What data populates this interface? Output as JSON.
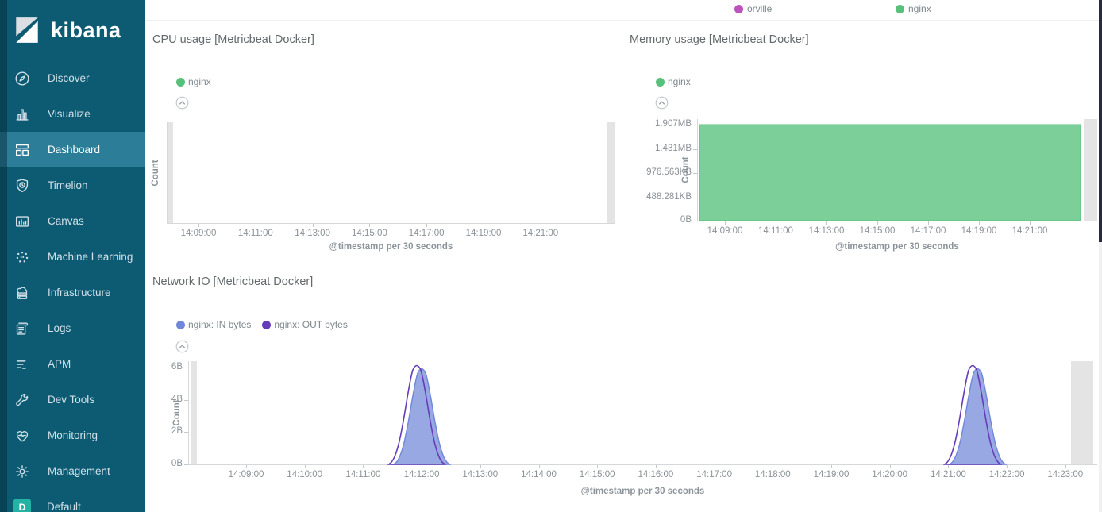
{
  "sidebar": {
    "logo_text": "kibana",
    "items": [
      {
        "label": "Discover",
        "icon": "compass-icon",
        "selected": false
      },
      {
        "label": "Visualize",
        "icon": "bar-chart-icon",
        "selected": false
      },
      {
        "label": "Dashboard",
        "icon": "dashboard-grid-icon",
        "selected": true
      },
      {
        "label": "Timelion",
        "icon": "timelion-shield-icon",
        "selected": false
      },
      {
        "label": "Canvas",
        "icon": "canvas-icon",
        "selected": false
      },
      {
        "label": "Machine Learning",
        "icon": "machine-learning-icon",
        "selected": false
      },
      {
        "label": "Infrastructure",
        "icon": "infrastructure-icon",
        "selected": false
      },
      {
        "label": "Logs",
        "icon": "logs-icon",
        "selected": false
      },
      {
        "label": "APM",
        "icon": "apm-icon",
        "selected": false
      },
      {
        "label": "Dev Tools",
        "icon": "wrench-icon",
        "selected": false
      },
      {
        "label": "Monitoring",
        "icon": "heartbeat-icon",
        "selected": false
      },
      {
        "label": "Management",
        "icon": "gear-icon",
        "selected": false
      },
      {
        "label": "Default",
        "icon": "space-badge-d",
        "badge": "D",
        "selected": false
      }
    ]
  },
  "top_legend": {
    "items": [
      {
        "label": "orville",
        "color": "#bc52bc"
      },
      {
        "label": "nginx",
        "color": "#57c17b"
      }
    ]
  },
  "colors": {
    "sidebar_background": "#0d5a73",
    "sidebar_selected": "#2c7d98",
    "space_badge": "#23b2a3",
    "series_green": "#57c17b",
    "series_blue": "#6f87d8",
    "series_purple": "#663db8",
    "series_magenta": "#bc52bc",
    "endzone_gray": "#e4e4e4"
  },
  "chart_data": [
    {
      "type": "area",
      "title": "CPU usage [Metricbeat Docker]",
      "ylabel": "Count",
      "xlabel": "@timestamp per 30 seconds",
      "x_ticks": [
        "14:09:00",
        "14:11:00",
        "14:13:00",
        "14:15:00",
        "14:17:00",
        "14:19:00",
        "14:21:00"
      ],
      "y_ticks": [],
      "legend_position": "top-left",
      "series": [
        {
          "name": "nginx",
          "color": "#57c17b",
          "values": [],
          "note": "no data points rendered in visible range"
        }
      ]
    },
    {
      "type": "area",
      "title": "Memory usage [Metricbeat Docker]",
      "ylabel": "Count",
      "xlabel": "@timestamp per 30 seconds",
      "x_ticks": [
        "14:09:00",
        "14:11:00",
        "14:13:00",
        "14:15:00",
        "14:17:00",
        "14:19:00",
        "14:21:00"
      ],
      "y_ticks": [
        "1.907MB",
        "1.431MB",
        "976.563KB",
        "488.281KB",
        "0B"
      ],
      "ylim_bytes": [
        0,
        2000000
      ],
      "legend_position": "top-left",
      "series": [
        {
          "name": "nginx",
          "color": "#57c17b",
          "shape": "constant",
          "value_bytes": 2000000,
          "value_display": "1.907MB",
          "x_start": "14:08:00",
          "x_end": "14:23:00"
        }
      ]
    },
    {
      "type": "area",
      "title": "Network IO [Metricbeat Docker]",
      "ylabel": "Count",
      "xlabel": "@timestamp per 30 seconds",
      "x_ticks": [
        "14:09:00",
        "14:10:00",
        "14:11:00",
        "14:12:00",
        "14:13:00",
        "14:14:00",
        "14:15:00",
        "14:16:00",
        "14:17:00",
        "14:18:00",
        "14:19:00",
        "14:20:00",
        "14:21:00",
        "14:22:00",
        "14:23:00"
      ],
      "y_ticks": [
        "6B",
        "4B",
        "2B",
        "0B"
      ],
      "ylim": [
        0,
        6
      ],
      "legend_position": "top-left",
      "series": [
        {
          "name": "nginx: IN bytes",
          "color": "#6f87d8",
          "fill": true,
          "points": [
            {
              "x": "14:11:30",
              "y": 0
            },
            {
              "x": "14:12:00",
              "y": 6
            },
            {
              "x": "14:12:30",
              "y": 0
            },
            {
              "x": "14:21:00",
              "y": 0
            },
            {
              "x": "14:21:30",
              "y": 6
            },
            {
              "x": "14:22:00",
              "y": 0
            }
          ]
        },
        {
          "name": "nginx: OUT bytes",
          "color": "#663db8",
          "fill": false,
          "points": [
            {
              "x": "14:11:25",
              "y": 0
            },
            {
              "x": "14:11:55",
              "y": 6.2
            },
            {
              "x": "14:12:25",
              "y": 0
            },
            {
              "x": "14:20:55",
              "y": 0
            },
            {
              "x": "14:21:25",
              "y": 6.2
            },
            {
              "x": "14:21:55",
              "y": 0
            }
          ]
        }
      ]
    }
  ]
}
